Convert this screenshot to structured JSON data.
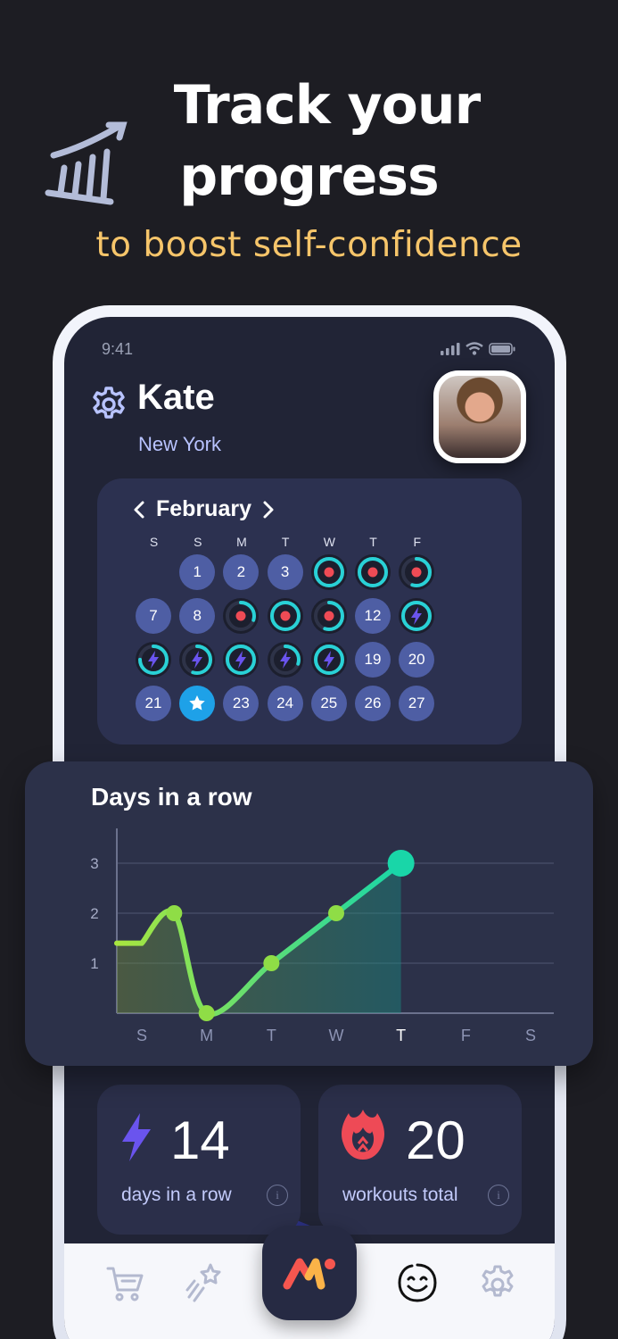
{
  "promo": {
    "title_line1": "Track your",
    "title_line2": "progress",
    "subtitle": "to boost self-confidence"
  },
  "status": {
    "time": "9:41"
  },
  "profile": {
    "name": "Kate",
    "city": "New York"
  },
  "calendar": {
    "month": "February",
    "weekdays": [
      "S",
      "S",
      "M",
      "T",
      "W",
      "T",
      "F"
    ],
    "days": [
      {
        "label": "1",
        "kind": "num"
      },
      {
        "label": "2",
        "kind": "num"
      },
      {
        "label": "3",
        "kind": "num"
      },
      {
        "label": "",
        "kind": "dot-full"
      },
      {
        "label": "",
        "kind": "dot-full"
      },
      {
        "label": "",
        "kind": "dot-half"
      },
      {
        "label": "7",
        "kind": "num"
      },
      {
        "label": "8",
        "kind": "num"
      },
      {
        "label": "",
        "kind": "dot-quarter"
      },
      {
        "label": "",
        "kind": "dot-full"
      },
      {
        "label": "",
        "kind": "dot-half"
      },
      {
        "label": "12",
        "kind": "num"
      },
      {
        "label": "",
        "kind": "bolt-full"
      },
      {
        "label": "",
        "kind": "bolt-three"
      },
      {
        "label": "",
        "kind": "bolt-half"
      },
      {
        "label": "",
        "kind": "bolt-full"
      },
      {
        "label": "",
        "kind": "bolt-quarter"
      },
      {
        "label": "",
        "kind": "bolt-full"
      },
      {
        "label": "19",
        "kind": "num"
      },
      {
        "label": "20",
        "kind": "num"
      },
      {
        "label": "21",
        "kind": "num"
      },
      {
        "label": "",
        "kind": "star"
      },
      {
        "label": "23",
        "kind": "num"
      },
      {
        "label": "24",
        "kind": "num"
      },
      {
        "label": "25",
        "kind": "num"
      },
      {
        "label": "26",
        "kind": "num"
      },
      {
        "label": "27",
        "kind": "num"
      }
    ]
  },
  "chart_data": {
    "type": "line",
    "title": "Days in a row",
    "categories": [
      "S",
      "M",
      "T",
      "W",
      "T",
      "F",
      "S"
    ],
    "highlight_category_index": 4,
    "x": [
      0,
      0.5,
      1,
      2,
      3,
      4
    ],
    "values": [
      1.4,
      2,
      0,
      1,
      2,
      3
    ],
    "x_range": [
      0,
      6
    ],
    "y_ticks": [
      "1",
      "2",
      "3"
    ],
    "ylim": [
      0,
      3
    ],
    "grid": true,
    "colors": {
      "line_start": "#a8e63f",
      "line_end": "#19d6a8",
      "grid": "#454b66"
    }
  },
  "stats": {
    "streak": {
      "value": "14",
      "label": "days in a row",
      "info": "i"
    },
    "workouts": {
      "value": "20",
      "label": "workouts total",
      "info": "i"
    }
  },
  "nav": {
    "items": [
      "cart-icon",
      "magic-wand-icon",
      "app-logo-icon",
      "smiley-face-icon",
      "gear-icon"
    ],
    "active": "smiley-face-icon"
  },
  "colors": {
    "background": "#1d1d23",
    "accent_yellow": "#f6c56a",
    "ring_teal": "#29d1d6",
    "ring_red": "#ef4b55",
    "bolt_purple": "#6a54ee",
    "today_blue": "#1ea1e8"
  }
}
